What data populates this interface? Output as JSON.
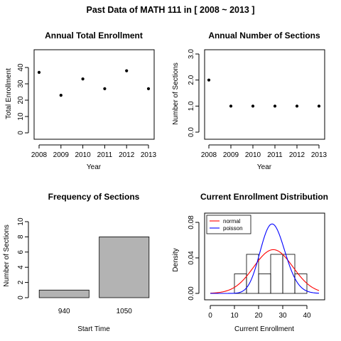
{
  "figure": {
    "title": "Past Data of MATH 111 in [ 2008 ~ 2013 ]"
  },
  "chart_data": [
    {
      "type": "scatter",
      "title": "Annual Total Enrollment",
      "xlabel": "Year",
      "ylabel": "Total Enrollment",
      "x": [
        2008,
        2009,
        2010,
        2011,
        2012,
        2013
      ],
      "y": [
        37,
        23,
        33,
        27,
        38,
        27
      ],
      "xlim": [
        2008,
        2013
      ],
      "ylim": [
        0,
        40
      ],
      "yticks": [
        0,
        10,
        20,
        30,
        40
      ],
      "ytick_labels": [
        "0",
        "10",
        "20",
        "30",
        "40"
      ],
      "grid": false
    },
    {
      "type": "scatter",
      "title": "Annual Number of Sections",
      "xlabel": "Year",
      "ylabel": "Number of Sections",
      "x": [
        2008,
        2009,
        2010,
        2011,
        2012,
        2013
      ],
      "y": [
        2,
        1,
        1,
        1,
        1,
        1
      ],
      "xlim": [
        2008,
        2013
      ],
      "ylim": [
        0,
        3
      ],
      "yticks": [
        0,
        1,
        2,
        3
      ],
      "ytick_labels": [
        "0.0",
        "1.0",
        "2.0",
        "3.0"
      ],
      "grid": false
    },
    {
      "type": "bar",
      "title": "Frequency of Sections",
      "xlabel": "Start Time",
      "ylabel": "Number of Sections",
      "categories": [
        "940",
        "1050"
      ],
      "values": [
        1,
        8
      ],
      "ylim": [
        0,
        10
      ],
      "yticks": [
        0,
        2,
        4,
        6,
        8,
        10
      ],
      "ytick_labels": [
        "0",
        "2",
        "4",
        "6",
        "8",
        "10"
      ],
      "bar_color": "#b3b3b3",
      "grid": false
    },
    {
      "type": "histogram",
      "title": "Current Enrollment Distribution",
      "xlabel": "Current Enrollment",
      "ylabel": "Density",
      "bins": [
        {
          "x0": 10,
          "x1": 15,
          "density": 0.022
        },
        {
          "x0": 15,
          "x1": 20,
          "density": 0.044
        },
        {
          "x0": 20,
          "x1": 25,
          "density": 0.022
        },
        {
          "x0": 25,
          "x1": 30,
          "density": 0.044
        },
        {
          "x0": 30,
          "x1": 35,
          "density": 0.044
        },
        {
          "x0": 35,
          "x1": 40,
          "density": 0.022
        }
      ],
      "xlim": [
        0,
        45
      ],
      "ylim": [
        0,
        0.08
      ],
      "xticks": [
        0,
        10,
        20,
        30,
        40
      ],
      "xtick_labels": [
        "0",
        "10",
        "20",
        "30",
        "40"
      ],
      "yticks": [
        0,
        0.04,
        0.08
      ],
      "ytick_labels": [
        "0.00",
        "0.04",
        "0.08"
      ],
      "series": [
        {
          "name": "normal",
          "distribution": "normal",
          "mean": 26.1,
          "sd": 8.1,
          "color": "#ff0000"
        },
        {
          "name": "poisson",
          "distribution": "poisson",
          "lambda": 26.1,
          "color": "#0000ff"
        }
      ],
      "legend": {
        "position": "top-left",
        "entries": [
          "normal",
          "poisson"
        ]
      },
      "grid": false
    }
  ]
}
